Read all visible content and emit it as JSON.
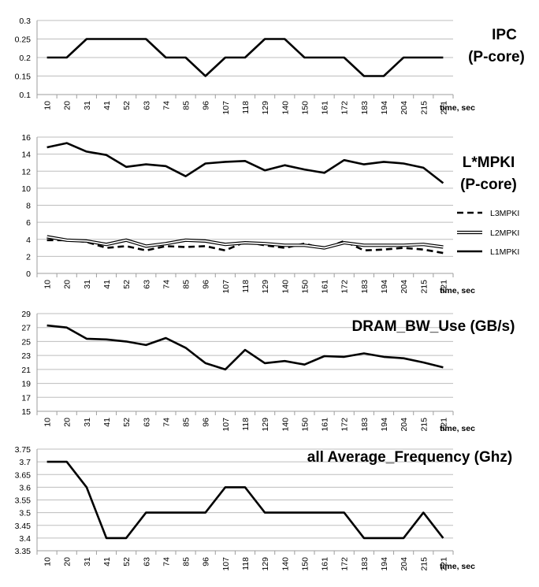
{
  "chart_data": [
    {
      "type": "line",
      "title_lines": [
        "IPC",
        "(P-core)"
      ],
      "x_unit": "time, sec",
      "categories": [
        "10",
        "20",
        "31",
        "41",
        "52",
        "63",
        "74",
        "85",
        "96",
        "107",
        "118",
        "129",
        "140",
        "150",
        "161",
        "172",
        "183",
        "194",
        "204",
        "215",
        "221"
      ],
      "ylim": [
        0.1,
        0.3
      ],
      "y_ticks": [
        "0.1",
        "0.15",
        "0.2",
        "0.25",
        "0.3"
      ],
      "grid": true,
      "series": [
        {
          "values": [
            0.2,
            0.2,
            0.25,
            0.25,
            0.25,
            0.25,
            0.2,
            0.2,
            0.15,
            0.2,
            0.2,
            0.25,
            0.25,
            0.2,
            0.2,
            0.2,
            0.15,
            0.15,
            0.2,
            0.2,
            0.2
          ]
        }
      ]
    },
    {
      "type": "line",
      "title_lines": [
        "L*MPKI",
        "(P-core)"
      ],
      "x_unit": "time, sec",
      "categories": [
        "10",
        "20",
        "31",
        "41",
        "52",
        "63",
        "74",
        "85",
        "96",
        "107",
        "118",
        "129",
        "140",
        "150",
        "161",
        "172",
        "183",
        "194",
        "204",
        "215",
        "221"
      ],
      "ylim": [
        0,
        16
      ],
      "y_ticks": [
        "0",
        "2",
        "4",
        "6",
        "8",
        "10",
        "12",
        "14",
        "16"
      ],
      "grid": true,
      "legend_position": "right",
      "series": [
        {
          "name": "L3MPKI",
          "style": "dashed",
          "values": [
            3.9,
            3.9,
            3.7,
            3.0,
            3.2,
            2.7,
            3.2,
            3.1,
            3.2,
            2.7,
            3.7,
            3.3,
            3.0,
            3.5,
            2.9,
            3.8,
            2.7,
            2.8,
            3.0,
            2.8,
            2.4
          ]
        },
        {
          "name": "L2MPKI",
          "style": "double",
          "values": [
            4.3,
            3.9,
            3.8,
            3.4,
            3.9,
            3.2,
            3.5,
            3.9,
            3.8,
            3.4,
            3.6,
            3.5,
            3.3,
            3.3,
            3.0,
            3.6,
            3.3,
            3.3,
            3.3,
            3.4,
            3.1
          ]
        },
        {
          "name": "L1MPKI",
          "style": "solid",
          "values": [
            14.8,
            15.3,
            14.3,
            13.9,
            12.5,
            12.8,
            12.6,
            11.4,
            12.9,
            13.1,
            13.2,
            12.1,
            12.7,
            12.2,
            11.8,
            13.3,
            12.8,
            13.1,
            12.9,
            12.4,
            10.6
          ]
        }
      ]
    },
    {
      "type": "line",
      "title_lines": [
        "DRAM_BW_Use (GB/s)"
      ],
      "x_unit": "time, sec",
      "categories": [
        "10",
        "20",
        "31",
        "41",
        "52",
        "63",
        "74",
        "85",
        "96",
        "107",
        "118",
        "129",
        "140",
        "150",
        "161",
        "172",
        "183",
        "194",
        "204",
        "215",
        "221"
      ],
      "ylim": [
        15,
        29
      ],
      "y_ticks": [
        "15",
        "17",
        "19",
        "21",
        "23",
        "25",
        "27",
        "29"
      ],
      "grid": true,
      "series": [
        {
          "values": [
            27.3,
            27.0,
            25.4,
            25.3,
            25.0,
            24.5,
            25.5,
            24.1,
            21.9,
            21.0,
            23.8,
            21.9,
            22.2,
            21.7,
            22.9,
            22.8,
            23.3,
            22.8,
            22.6,
            22.0,
            21.3
          ]
        }
      ]
    },
    {
      "type": "line",
      "title_lines": [
        "all Average_Frequency (Ghz)"
      ],
      "x_unit": "time, sec",
      "categories": [
        "10",
        "20",
        "31",
        "41",
        "52",
        "63",
        "74",
        "85",
        "96",
        "107",
        "118",
        "129",
        "140",
        "150",
        "161",
        "172",
        "183",
        "194",
        "204",
        "215",
        "221"
      ],
      "ylim": [
        3.35,
        3.75
      ],
      "y_ticks": [
        "3.35",
        "3.4",
        "3.45",
        "3.5",
        "3.55",
        "3.6",
        "3.65",
        "3.7",
        "3.75"
      ],
      "grid": true,
      "series": [
        {
          "values": [
            3.7,
            3.7,
            3.6,
            3.4,
            3.4,
            3.5,
            3.5,
            3.5,
            3.5,
            3.6,
            3.6,
            3.5,
            3.5,
            3.5,
            3.5,
            3.5,
            3.4,
            3.4,
            3.4,
            3.5,
            3.4
          ]
        }
      ]
    }
  ]
}
